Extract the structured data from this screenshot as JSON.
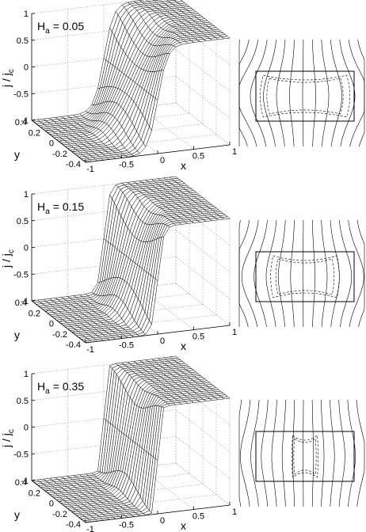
{
  "chart_data": [
    {
      "type": "surface",
      "annotation": {
        "symbol": "H",
        "subscript": "a",
        "relation": "=",
        "value": 0.05
      },
      "xlabel": "x",
      "ylabel": "y",
      "zlabel": {
        "text": "j / j",
        "subscript": "c"
      },
      "xlim": [
        -1,
        1
      ],
      "ylim": [
        -0.4,
        0.4
      ],
      "zlim": [
        -1,
        1
      ],
      "xticks": [
        -1,
        -0.5,
        0,
        0.5,
        1
      ],
      "yticks": [
        -0.4,
        -0.2,
        0,
        0.2,
        0.4
      ],
      "zticks": [
        -1,
        -0.5,
        0,
        0.5,
        1
      ]
    },
    {
      "type": "surface",
      "annotation": {
        "symbol": "H",
        "subscript": "a",
        "relation": "=",
        "value": 0.15
      },
      "xlabel": "x",
      "ylabel": "y",
      "zlabel": {
        "text": "j / j",
        "subscript": "c"
      },
      "xlim": [
        -1,
        1
      ],
      "ylim": [
        -0.4,
        0.4
      ],
      "zlim": [
        -1,
        1
      ],
      "xticks": [
        -1,
        -0.5,
        0,
        0.5,
        1
      ],
      "yticks": [
        -0.4,
        -0.2,
        0,
        0.2,
        0.4
      ],
      "zticks": [
        -1,
        -0.5,
        0,
        0.5,
        1
      ]
    },
    {
      "type": "surface",
      "annotation": {
        "symbol": "H",
        "subscript": "a",
        "relation": "=",
        "value": 0.35
      },
      "xlabel": "x",
      "ylabel": "y",
      "zlabel": {
        "text": "j / j",
        "subscript": "c"
      },
      "xlim": [
        -1,
        1
      ],
      "ylim": [
        -0.4,
        0.4
      ],
      "zlim": [
        -1,
        1
      ],
      "xticks": [
        -1,
        -0.5,
        0,
        0.5,
        1
      ],
      "yticks": [
        -0.4,
        -0.2,
        0,
        0.2,
        0.4
      ],
      "zticks": [
        -1,
        -0.5,
        0,
        0.5,
        1
      ]
    }
  ]
}
